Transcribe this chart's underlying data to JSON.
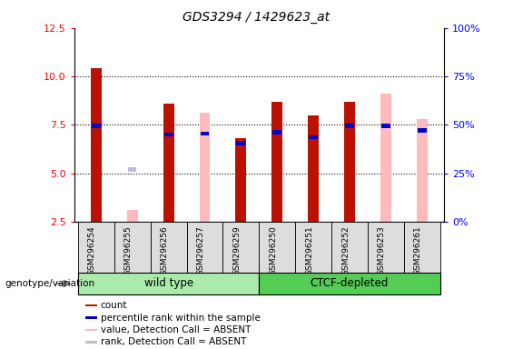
{
  "title": "GDS3294 / 1429623_at",
  "samples": [
    "GSM296254",
    "GSM296255",
    "GSM296256",
    "GSM296257",
    "GSM296259",
    "GSM296250",
    "GSM296251",
    "GSM296252",
    "GSM296253",
    "GSM296261"
  ],
  "groups": [
    {
      "label": "wild type",
      "indices": [
        0,
        1,
        2,
        3,
        4
      ],
      "color": "#aaeaaa"
    },
    {
      "label": "CTCF-depleted",
      "indices": [
        5,
        6,
        7,
        8,
        9
      ],
      "color": "#55cc55"
    }
  ],
  "ylim_left": [
    2.5,
    12.5
  ],
  "ylim_right": [
    0,
    100
  ],
  "yticks_left": [
    2.5,
    5.0,
    7.5,
    10.0,
    12.5
  ],
  "yticks_right": [
    0,
    25,
    50,
    75,
    100
  ],
  "ytick_labels_right": [
    "0%",
    "25%",
    "50%",
    "75%",
    "100%"
  ],
  "count_color": "#bb1100",
  "rank_color": "#0000cc",
  "absent_value_color": "#ffbbbb",
  "absent_rank_color": "#bbbbdd",
  "count_bar_width": 0.3,
  "absent_bar_width": 0.3,
  "rank_bar_width": 0.25,
  "count_values": [
    10.4,
    null,
    8.6,
    null,
    6.8,
    8.7,
    8.0,
    8.7,
    null,
    null
  ],
  "rank_values": [
    7.45,
    null,
    7.0,
    7.05,
    6.55,
    7.1,
    6.85,
    7.45,
    7.45,
    7.2
  ],
  "absent_value": [
    null,
    3.1,
    null,
    8.1,
    null,
    null,
    null,
    null,
    9.1,
    7.8
  ],
  "absent_rank": [
    null,
    5.2,
    null,
    null,
    null,
    null,
    null,
    null,
    null,
    null
  ],
  "legend_items": [
    {
      "color": "#bb1100",
      "label": "count"
    },
    {
      "color": "#0000cc",
      "label": "percentile rank within the sample"
    },
    {
      "color": "#ffbbbb",
      "label": "value, Detection Call = ABSENT"
    },
    {
      "color": "#bbbbdd",
      "label": "rank, Detection Call = ABSENT"
    }
  ],
  "genotype_label": "genotype/variation",
  "background_color": "#ffffff",
  "sample_box_color": "#dddddd",
  "grid_color": "#000000",
  "grid_dotted": true
}
